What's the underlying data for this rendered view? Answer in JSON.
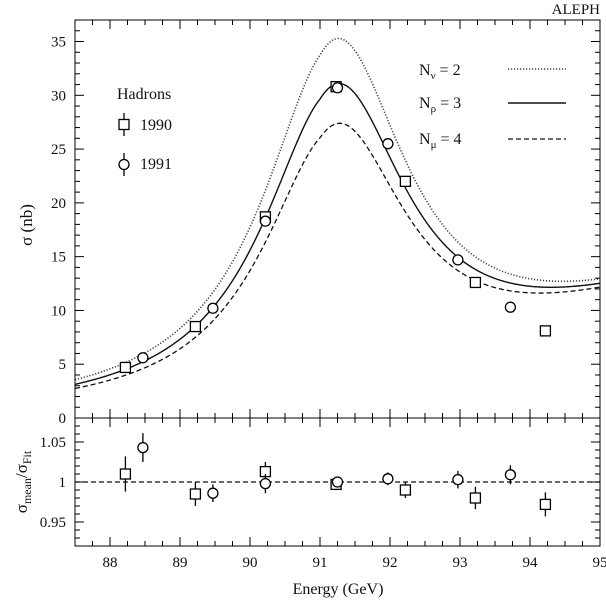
{
  "chart_data": [
    {
      "type": "line",
      "panel": "upper",
      "corner_label": "ALEPH",
      "ylabel": "σ (nb)",
      "xlim": [
        87.5,
        95
      ],
      "ylim": [
        0,
        37
      ],
      "yticks": [
        0,
        5,
        10,
        15,
        20,
        25,
        30,
        35
      ],
      "legend_title": "Hadrons",
      "series": [
        {
          "name": "Nν = 2",
          "sub": "ν",
          "style": "dotted",
          "peak": 35.1
        },
        {
          "name": "Nρ = 3",
          "sub": "ρ",
          "style": "solid",
          "peak": 30.9
        },
        {
          "name": "Nμ = 4",
          "sub": "μ",
          "style": "dashed",
          "peak": 27.2
        }
      ],
      "points": [
        {
          "name": "1990",
          "marker": "square",
          "x": [
            88.22,
            89.22,
            90.22,
            91.23,
            92.22,
            93.22,
            94.22
          ],
          "y": [
            4.7,
            8.5,
            18.7,
            30.8,
            22.0,
            12.6,
            8.1
          ]
        },
        {
          "name": "1991",
          "marker": "circle",
          "x": [
            88.47,
            89.47,
            90.22,
            91.25,
            91.97,
            92.97,
            93.72
          ],
          "y": [
            5.6,
            10.2,
            18.3,
            30.7,
            25.5,
            14.7,
            10.3
          ]
        }
      ]
    },
    {
      "type": "scatter",
      "panel": "lower",
      "xlabel": "Energy (GeV)",
      "ylabel": "σmean/σFit",
      "ylabel_main": "σ",
      "ylabel_sub1": "mean",
      "ylabel_mid": "/σ",
      "ylabel_sub2": "Fit",
      "xlim": [
        87.5,
        95
      ],
      "ylim": [
        0.92,
        1.08
      ],
      "xticks": [
        88,
        89,
        90,
        91,
        92,
        93,
        94,
        95
      ],
      "yticks": [
        0.95,
        1,
        1.05
      ],
      "ytick_labels": [
        "0.95",
        "1",
        "1.05"
      ],
      "reference_line": 1.0,
      "series": [
        {
          "name": "1990",
          "marker": "square",
          "x": [
            88.22,
            89.22,
            90.22,
            91.23,
            92.22,
            93.22,
            94.22
          ],
          "y": [
            1.01,
            0.985,
            1.013,
            0.997,
            0.99,
            0.98,
            0.972
          ],
          "err": [
            0.022,
            0.015,
            0.012,
            0.006,
            0.01,
            0.014,
            0.015
          ]
        },
        {
          "name": "1991",
          "marker": "circle",
          "x": [
            88.47,
            89.47,
            90.22,
            91.25,
            91.97,
            92.97,
            93.72
          ],
          "y": [
            1.043,
            0.986,
            0.998,
            1.0,
            1.004,
            1.003,
            1.009
          ],
          "err": [
            0.018,
            0.011,
            0.012,
            0.005,
            0.008,
            0.011,
            0.012
          ]
        }
      ]
    }
  ]
}
